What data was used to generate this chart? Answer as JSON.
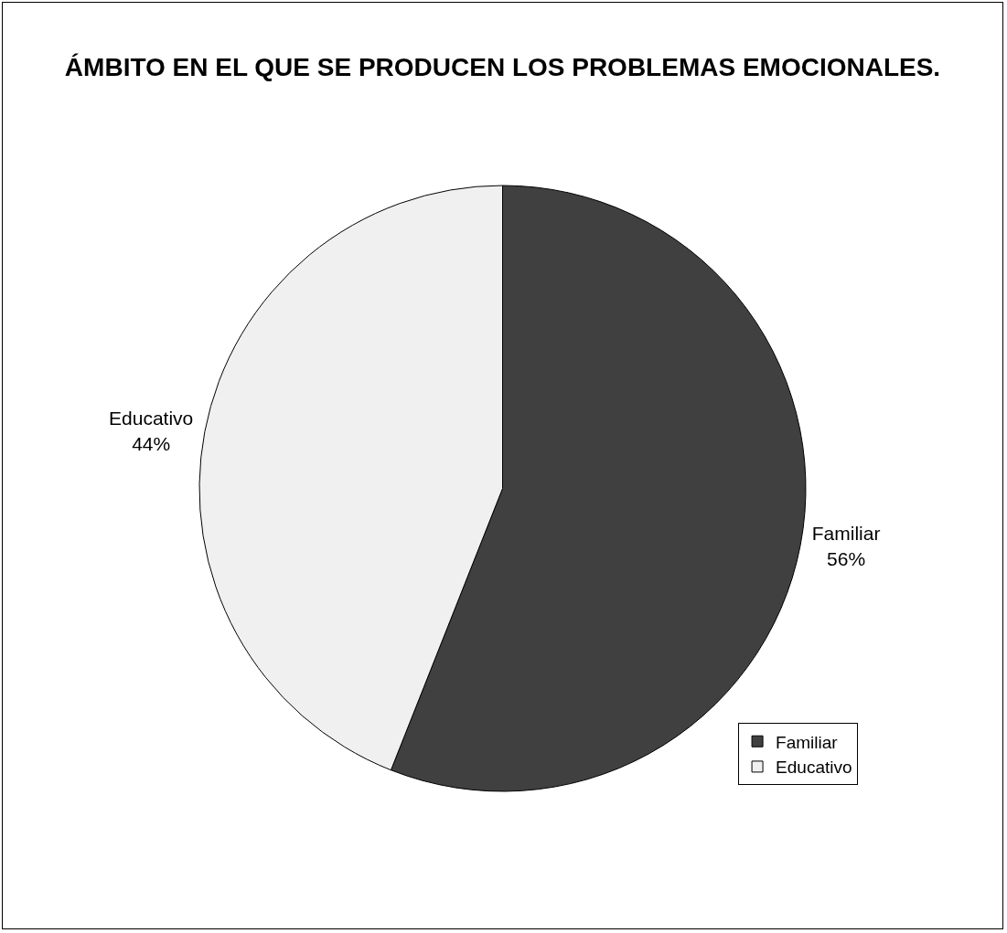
{
  "chart_data": {
    "type": "pie",
    "title": "ÁMBITO EN EL QUE SE PRODUCEN LOS PROBLEMAS EMOCIONALES.",
    "categories": [
      "Familiar",
      "Educativo"
    ],
    "values": [
      56,
      44
    ],
    "value_labels": [
      "56%",
      "44%"
    ],
    "colors": [
      "#404040",
      "#f0f0f0"
    ],
    "legend": "bottom right"
  }
}
